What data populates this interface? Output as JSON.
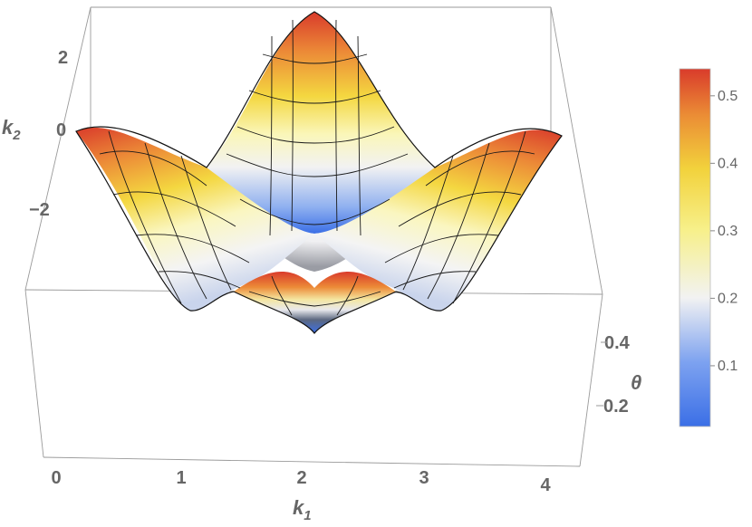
{
  "chart_data": {
    "type": "surface3d",
    "title": "",
    "axes": {
      "x": {
        "label": "k",
        "subscript": "1",
        "range": [
          0,
          4.2
        ],
        "ticks": [
          0,
          1,
          2,
          3,
          4
        ]
      },
      "y": {
        "label": "k",
        "subscript": "2",
        "range": [
          -3.1,
          3.1
        ],
        "ticks": [
          2,
          0,
          -2
        ],
        "tick_labels": [
          "2",
          "0",
          "−2"
        ]
      },
      "z": {
        "label": "θ",
        "range": [
          0.0,
          0.55
        ],
        "ticks": [
          0.4,
          0.2
        ],
        "tick_labels": [
          "0.4",
          "0.2"
        ]
      }
    },
    "surface": {
      "description_shape": "two ridges crossing at k1≈2.1",
      "peak_value": 0.53,
      "min_value": 0.02,
      "features": [
        {
          "k1": 2.1,
          "k2": 3.1,
          "theta": 0.53
        },
        {
          "k1": 0.2,
          "k2": 0.0,
          "theta": 0.53
        },
        {
          "k1": 4.1,
          "k2": 0.0,
          "theta": 0.53
        },
        {
          "k1": 2.1,
          "k2": -3.1,
          "theta": 0.53
        },
        {
          "k1": 2.1,
          "k2": 0.0,
          "theta": 0.02
        }
      ]
    },
    "colorbar": {
      "ticks": [
        0.1,
        0.2,
        0.3,
        0.4,
        0.5
      ],
      "tick_labels": [
        "0.1",
        "0.2",
        "0.3",
        "0.4",
        "0.5"
      ],
      "range": [
        0.01,
        0.54
      ],
      "colors": [
        "#3b6fe6",
        "#7da2f0",
        "#f2f2f2",
        "#f7f08a",
        "#f2d23c",
        "#eb8d35",
        "#d93b2b"
      ]
    }
  }
}
